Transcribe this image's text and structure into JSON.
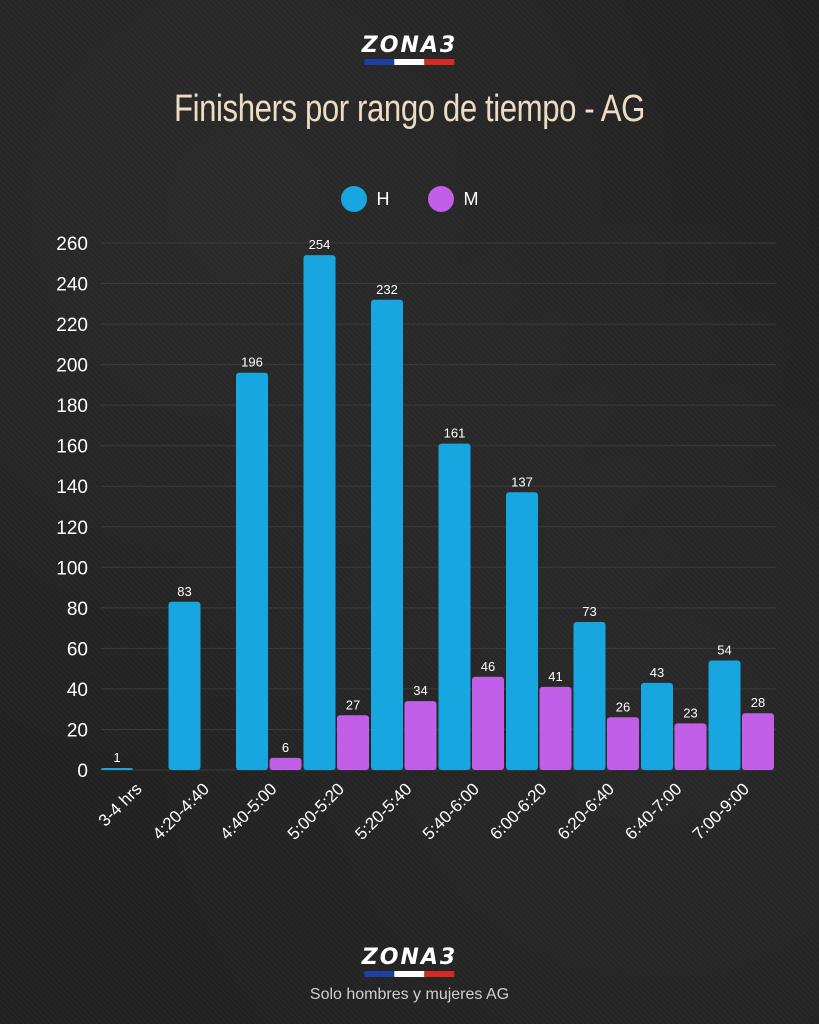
{
  "header": {
    "logo_text": "ZONA3",
    "title": "Finishers por rango de tiempo - AG"
  },
  "footer": {
    "logo_text": "ZONA3",
    "note": "Solo hombres y mujeres AG"
  },
  "colors": {
    "H": "#17a6e0",
    "M": "#c15fe8",
    "grid": "#3a3a3a",
    "stripe": [
      "#1f3fa0",
      "#ffffff",
      "#d62a2a"
    ]
  },
  "chart_data": {
    "type": "bar",
    "title": "Finishers por rango de tiempo - AG",
    "xlabel": "",
    "ylabel": "",
    "ylim": [
      0,
      260
    ],
    "yticks": [
      0,
      20,
      40,
      60,
      80,
      100,
      120,
      140,
      160,
      180,
      200,
      220,
      240,
      260
    ],
    "grid": true,
    "legend_position": "top-center",
    "categories": [
      "3-4 hrs",
      "4:20-4:40",
      "4:40-5:00",
      "5:00-5:20",
      "5:20-5:40",
      "5:40-6:00",
      "6:00-6:20",
      "6:20-6:40",
      "6:40-7:00",
      "7:00-9:00"
    ],
    "series": [
      {
        "name": "H",
        "values": [
          1,
          83,
          196,
          254,
          232,
          161,
          137,
          73,
          43,
          54
        ],
        "labels": [
          "1",
          "83",
          "196",
          "254",
          "232",
          "161",
          "137",
          "73",
          "43",
          "54"
        ]
      },
      {
        "name": "M",
        "values": [
          null,
          null,
          6,
          27,
          34,
          46,
          41,
          26,
          23,
          28
        ],
        "labels": [
          "",
          "",
          "6",
          "27",
          "34",
          "46",
          "41",
          "26",
          "23",
          "28"
        ]
      }
    ]
  }
}
